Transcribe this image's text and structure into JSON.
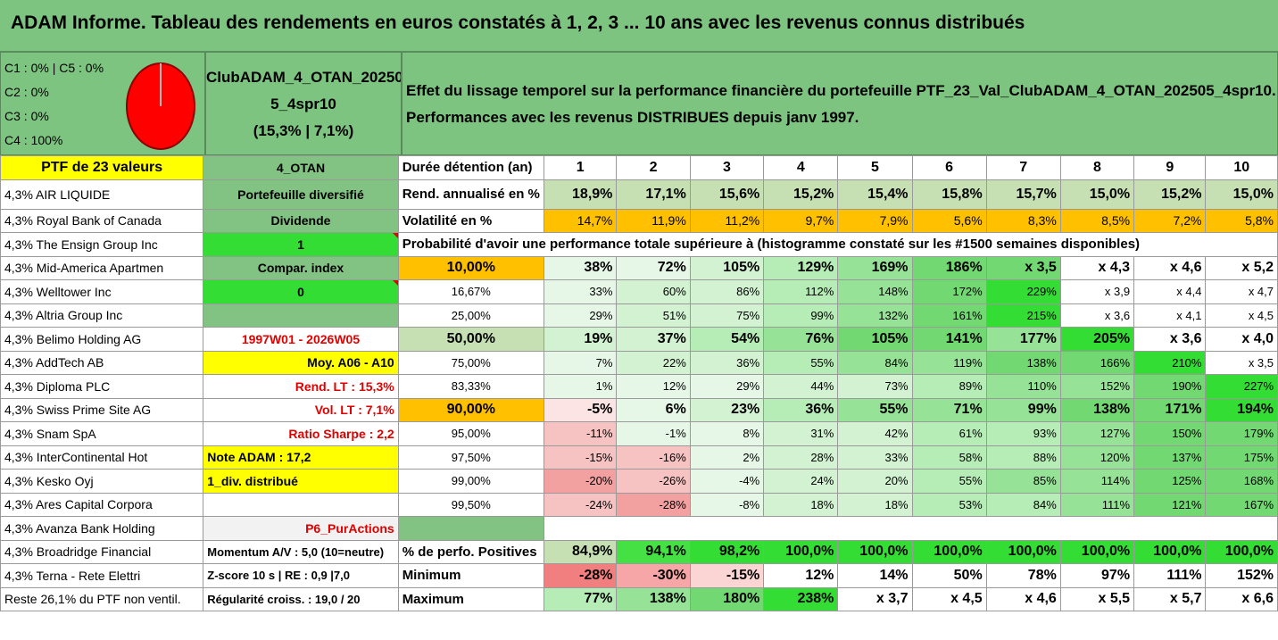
{
  "title": "ADAM Informe. Tableau des rendements en euros constatés à 1, 2, 3 ... 10 ans avec les revenus connus distribués",
  "header": {
    "c_lines": [
      "C1 : 0% | C5 : 0%",
      "C2 : 0%",
      "C3 : 0%",
      "C4 : 100%"
    ],
    "pie": {
      "color": "#ff0000",
      "border": "#8b0000"
    },
    "portfolio_name": [
      "ClubADAM_4_OTAN_20250",
      "5_4spr10",
      "(15,3% | 7,1%)"
    ],
    "description": [
      "Effet du lissage temporel sur la performance financière du portefeuille PTF_23_Val_ClubADAM_4_OTAN_202505_4spr10.",
      "Performances avec les revenus DISTRIBUES depuis janv 1997."
    ]
  },
  "colors": {
    "title_bg": "#7cc47f",
    "yellow": "#ffff00",
    "orange": "#ffc000",
    "bright_green": "#33dd33",
    "mid_green": "#82c282",
    "light_green": "#c6e0b4",
    "red_text": "#e00000"
  },
  "stocks": [
    "PTF de 23 valeurs",
    "4,3% AIR LIQUIDE",
    "4,3% Royal Bank of Canada",
    "4,3% The Ensign Group Inc",
    "4,3% Mid-America Apartmen",
    "4,3% Welltower Inc",
    "4,3% Altria Group Inc",
    "4,3% Belimo Holding AG",
    "4,3% AddTech AB",
    "4,3% Diploma PLC",
    "4,3% Swiss Prime Site AG",
    "4,3% Snam SpA",
    "4,3% InterContinental Hot",
    "4,3% Kesko Oyj",
    "4,3% Ares Capital Corpora",
    "4,3% Avanza Bank Holding",
    "4,3% Broadridge Financial",
    "4,3% Terna - Rete Elettri",
    "Reste 26,1% du PTF non ventil."
  ],
  "info": [
    "4_OTAN",
    "Portefeuille diversifié",
    "Dividende",
    "1",
    "Compar. index",
    "0",
    "",
    "1997W01 - 2026W05",
    "Moy. A06 - A10",
    "Rend. LT : 15,3%",
    "Vol. LT : 7,1%",
    "Ratio Sharpe : 2,2",
    "Note ADAM : 17,2",
    "1_div. distribué",
    "",
    "P6_PurActions",
    "Momentum A/V : 5,0 (10=neutre)",
    "Z-score 10 s | RE : 0,9 |7,0",
    "Régularité croiss. : 19,0 / 20"
  ],
  "table": {
    "duration_label": "Durée détention (an)",
    "years": [
      "1",
      "2",
      "3",
      "4",
      "5",
      "6",
      "7",
      "8",
      "9",
      "10"
    ],
    "rend_label": "Rend. annualisé en %",
    "rend": [
      "18,9%",
      "17,1%",
      "15,6%",
      "15,2%",
      "15,4%",
      "15,8%",
      "15,7%",
      "15,0%",
      "15,2%",
      "15,0%"
    ],
    "vol_label": "Volatilité en %",
    "vol": [
      "14,7%",
      "11,9%",
      "11,2%",
      "9,7%",
      "7,9%",
      "5,6%",
      "8,3%",
      "8,5%",
      "7,2%",
      "5,8%"
    ],
    "prob_title": "Probabilité d'avoir une performance totale supérieure à (histogramme constaté sur les #1500 semaines disponibles)",
    "prob_rows": [
      {
        "p": "10,00%",
        "v": [
          "38%",
          "72%",
          "105%",
          "129%",
          "169%",
          "186%",
          "x 3,5",
          "x 4,3",
          "x 4,6",
          "x 5,2"
        ]
      },
      {
        "p": "16,67%",
        "v": [
          "33%",
          "60%",
          "86%",
          "112%",
          "148%",
          "172%",
          "229%",
          "x 3,9",
          "x 4,4",
          "x 4,7"
        ]
      },
      {
        "p": "25,00%",
        "v": [
          "29%",
          "51%",
          "75%",
          "99%",
          "132%",
          "161%",
          "215%",
          "x 3,6",
          "x 4,1",
          "x 4,5"
        ]
      },
      {
        "p": "50,00%",
        "v": [
          "19%",
          "37%",
          "54%",
          "76%",
          "105%",
          "141%",
          "177%",
          "205%",
          "x 3,6",
          "x 4,0"
        ]
      },
      {
        "p": "75,00%",
        "v": [
          "7%",
          "22%",
          "36%",
          "55%",
          "84%",
          "119%",
          "138%",
          "166%",
          "210%",
          "x 3,5"
        ]
      },
      {
        "p": "83,33%",
        "v": [
          "1%",
          "12%",
          "29%",
          "44%",
          "73%",
          "89%",
          "110%",
          "152%",
          "190%",
          "227%"
        ]
      },
      {
        "p": "90,00%",
        "v": [
          "-5%",
          "6%",
          "23%",
          "36%",
          "55%",
          "71%",
          "99%",
          "138%",
          "171%",
          "194%"
        ]
      },
      {
        "p": "95,00%",
        "v": [
          "-11%",
          "-1%",
          "8%",
          "31%",
          "42%",
          "61%",
          "93%",
          "127%",
          "150%",
          "179%"
        ]
      },
      {
        "p": "97,50%",
        "v": [
          "-15%",
          "-16%",
          "2%",
          "28%",
          "33%",
          "58%",
          "88%",
          "120%",
          "137%",
          "175%"
        ]
      },
      {
        "p": "99,00%",
        "v": [
          "-20%",
          "-26%",
          "-4%",
          "24%",
          "20%",
          "55%",
          "85%",
          "114%",
          "125%",
          "168%"
        ]
      },
      {
        "p": "99,50%",
        "v": [
          "-24%",
          "-28%",
          "-8%",
          "18%",
          "18%",
          "53%",
          "84%",
          "111%",
          "121%",
          "167%"
        ]
      }
    ],
    "pos_label": "% de perfo. Positives",
    "pos": [
      "84,9%",
      "94,1%",
      "98,2%",
      "100,0%",
      "100,0%",
      "100,0%",
      "100,0%",
      "100,0%",
      "100,0%",
      "100,0%"
    ],
    "min_label": "Minimum",
    "min": [
      "-28%",
      "-30%",
      "-15%",
      "12%",
      "14%",
      "50%",
      "78%",
      "97%",
      "111%",
      "152%"
    ],
    "max_label": "Maximum",
    "max": [
      "77%",
      "138%",
      "180%",
      "238%",
      "x 3,7",
      "x 4,5",
      "x 4,6",
      "x 5,5",
      "x 5,7",
      "x 6,6"
    ]
  }
}
